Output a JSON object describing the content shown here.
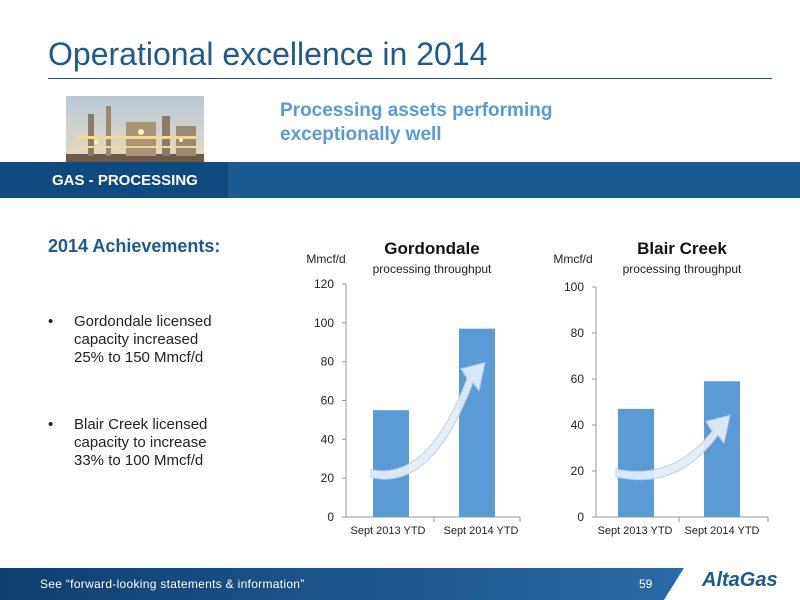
{
  "slide": {
    "title": "Operational excellence in 2014",
    "subtitle_line1": "Processing assets performing",
    "subtitle_line2": "exceptionally well",
    "banner": "GAS - PROCESSING"
  },
  "achievements": {
    "heading": "2014 Achievements:",
    "bullets": [
      [
        "Gordondale licensed",
        "capacity increased",
        "25% to 150 Mmcf/d"
      ],
      [
        "Blair Creek licensed",
        "capacity to increase",
        "33% to 100 Mmcf/d"
      ]
    ]
  },
  "footer": {
    "text": "See “forward-looking statements & information”",
    "page": "59",
    "logo": "AltaGas"
  },
  "colors": {
    "primary": "#1d5a8e",
    "accent": "#5a9bd5",
    "bar": "#5a9bd5",
    "banner": "#1a5a92"
  },
  "chart_data": [
    {
      "type": "bar",
      "title": "Gordondale",
      "subtitle": "processing throughput",
      "ylabel": "Mmcf/d",
      "categories": [
        "Sept 2013 YTD",
        "Sept 2014 YTD"
      ],
      "values": [
        55,
        97
      ],
      "ylim": [
        0,
        120
      ],
      "yticks": [
        0,
        20,
        40,
        60,
        80,
        100,
        120
      ],
      "grid": false
    },
    {
      "type": "bar",
      "title": "Blair Creek",
      "subtitle": "processing throughput",
      "ylabel": "Mmcf/d",
      "categories": [
        "Sept 2013 YTD",
        "Sept 2014 YTD"
      ],
      "values": [
        47,
        59
      ],
      "ylim": [
        0,
        100
      ],
      "yticks": [
        0,
        20,
        40,
        60,
        80,
        100
      ],
      "grid": false
    }
  ]
}
